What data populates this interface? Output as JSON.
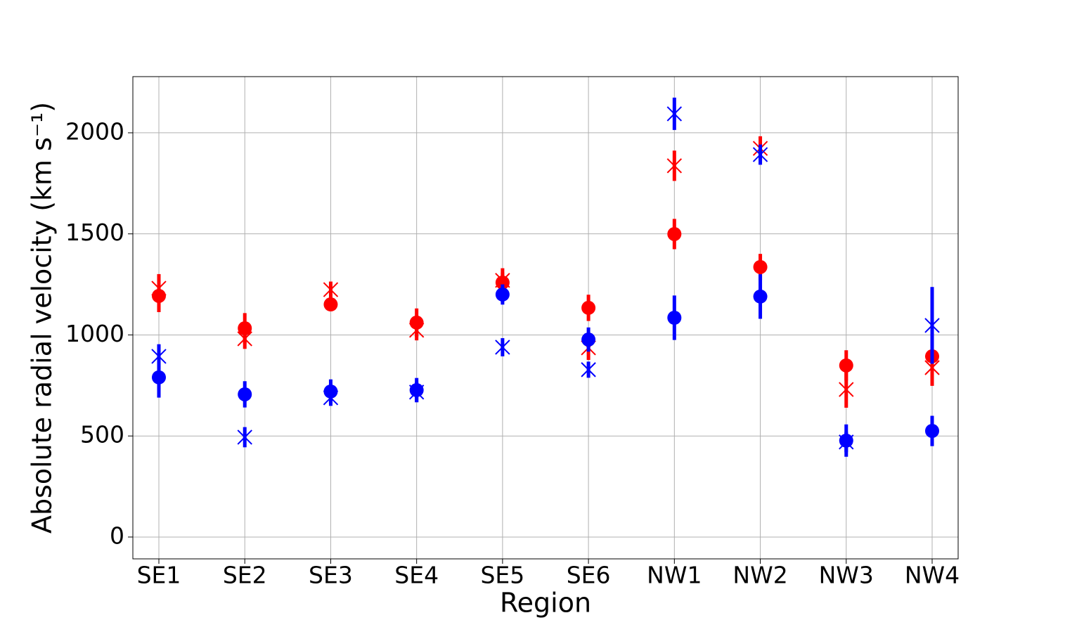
{
  "chart_data": {
    "type": "scatter",
    "x_label": "Region",
    "y_label": "Absolute radial velocity (km s⁻¹)",
    "categories": [
      "SE1",
      "SE2",
      "SE3",
      "SE4",
      "SE5",
      "SE6",
      "NW1",
      "NW2",
      "NW3",
      "NW4"
    ],
    "ylim": [
      -108,
      2278
    ],
    "yticks": [
      0,
      500,
      1000,
      1500,
      2000
    ],
    "grid": true,
    "series": [
      {
        "color": "#ff0000",
        "marker": "circle",
        "values": [
          1193,
          1033,
          1151,
          1061,
          1259,
          1134,
          1499,
          1336,
          849,
          894
        ],
        "errors": [
          80,
          75,
          30,
          70,
          50,
          65,
          75,
          65,
          75,
          60
        ]
      },
      {
        "color": "#ff0000",
        "marker": "x",
        "values": [
          1231,
          981,
          1224,
          1023,
          1270,
          936,
          1837,
          1923,
          730,
          838
        ],
        "errors": [
          70,
          50,
          40,
          50,
          60,
          60,
          75,
          60,
          90,
          90
        ]
      },
      {
        "color": "#0000ff",
        "marker": "circle",
        "values": [
          790,
          706,
          720,
          727,
          1200,
          977,
          1085,
          1190,
          477,
          525
        ],
        "errors": [
          100,
          65,
          60,
          60,
          50,
          60,
          110,
          110,
          80,
          75
        ]
      },
      {
        "color": "#0000ff",
        "marker": "x",
        "values": [
          894,
          494,
          689,
          717,
          939,
          828,
          2094,
          1892,
          470,
          1047
        ],
        "errors": [
          60,
          50,
          40,
          50,
          45,
          40,
          80,
          50,
          50,
          190
        ]
      }
    ]
  }
}
